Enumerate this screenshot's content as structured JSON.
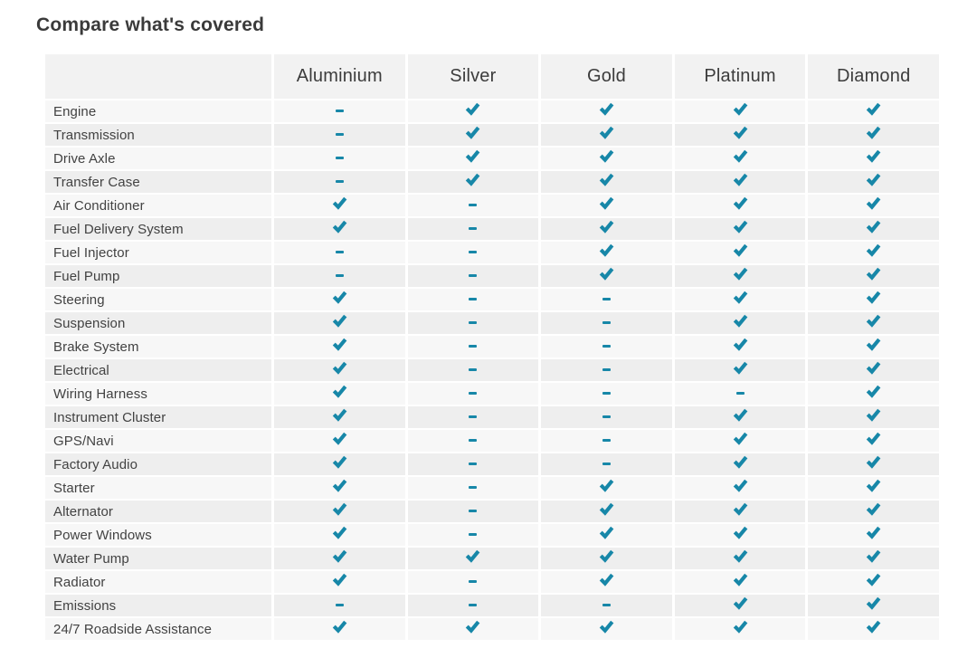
{
  "page": {
    "title": "Compare what's covered"
  },
  "colors": {
    "accent": "#1787a8",
    "header_bg": "#f2f2f2",
    "row_light": "#f7f7f7",
    "row_dark": "#eeeeee",
    "title_text": "#3a3a3a",
    "header_text": "#3c3c3c",
    "label_text": "#424242"
  },
  "icons": {
    "covered": "check-icon",
    "not_covered": "dash-icon"
  },
  "table": {
    "columns": [
      "Aluminium",
      "Silver",
      "Gold",
      "Platinum",
      "Diamond"
    ],
    "rows": [
      {
        "label": "Engine",
        "values": [
          "dash",
          "check",
          "check",
          "check",
          "check"
        ]
      },
      {
        "label": "Transmission",
        "values": [
          "dash",
          "check",
          "check",
          "check",
          "check"
        ]
      },
      {
        "label": "Drive Axle",
        "values": [
          "dash",
          "check",
          "check",
          "check",
          "check"
        ]
      },
      {
        "label": "Transfer Case",
        "values": [
          "dash",
          "check",
          "check",
          "check",
          "check"
        ]
      },
      {
        "label": "Air Conditioner",
        "values": [
          "check",
          "dash",
          "check",
          "check",
          "check"
        ]
      },
      {
        "label": "Fuel Delivery System",
        "values": [
          "check",
          "dash",
          "check",
          "check",
          "check"
        ]
      },
      {
        "label": "Fuel Injector",
        "values": [
          "dash",
          "dash",
          "check",
          "check",
          "check"
        ]
      },
      {
        "label": "Fuel Pump",
        "values": [
          "dash",
          "dash",
          "check",
          "check",
          "check"
        ]
      },
      {
        "label": "Steering",
        "values": [
          "check",
          "dash",
          "dash",
          "check",
          "check"
        ]
      },
      {
        "label": "Suspension",
        "values": [
          "check",
          "dash",
          "dash",
          "check",
          "check"
        ]
      },
      {
        "label": "Brake System",
        "values": [
          "check",
          "dash",
          "dash",
          "check",
          "check"
        ]
      },
      {
        "label": "Electrical",
        "values": [
          "check",
          "dash",
          "dash",
          "check",
          "check"
        ]
      },
      {
        "label": "Wiring Harness",
        "values": [
          "check",
          "dash",
          "dash",
          "dash",
          "check"
        ]
      },
      {
        "label": "Instrument Cluster",
        "values": [
          "check",
          "dash",
          "dash",
          "check",
          "check"
        ]
      },
      {
        "label": "GPS/Navi",
        "values": [
          "check",
          "dash",
          "dash",
          "check",
          "check"
        ]
      },
      {
        "label": "Factory Audio",
        "values": [
          "check",
          "dash",
          "dash",
          "check",
          "check"
        ]
      },
      {
        "label": "Starter",
        "values": [
          "check",
          "dash",
          "check",
          "check",
          "check"
        ]
      },
      {
        "label": "Alternator",
        "values": [
          "check",
          "dash",
          "check",
          "check",
          "check"
        ]
      },
      {
        "label": "Power Windows",
        "values": [
          "check",
          "dash",
          "check",
          "check",
          "check"
        ]
      },
      {
        "label": "Water Pump",
        "values": [
          "check",
          "check",
          "check",
          "check",
          "check"
        ]
      },
      {
        "label": "Radiator",
        "values": [
          "check",
          "dash",
          "check",
          "check",
          "check"
        ]
      },
      {
        "label": "Emissions",
        "values": [
          "dash",
          "dash",
          "dash",
          "check",
          "check"
        ]
      },
      {
        "label": "24/7 Roadside Assistance",
        "values": [
          "check",
          "check",
          "check",
          "check",
          "check"
        ]
      }
    ]
  }
}
